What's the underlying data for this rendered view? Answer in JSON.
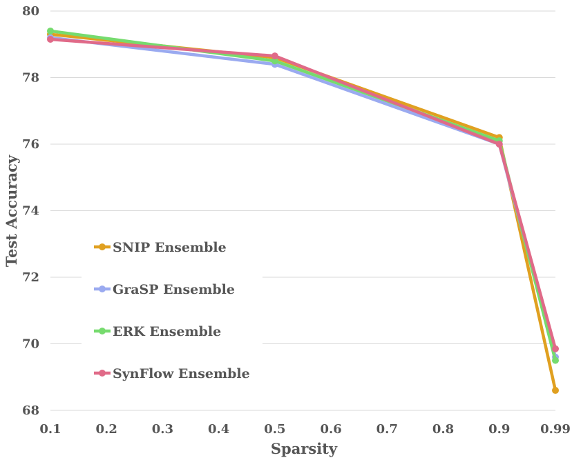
{
  "chart_data": {
    "type": "line",
    "title": "",
    "xlabel": "Sparsity",
    "ylabel": "Test Accuracy",
    "x_ticks": [
      "0.1",
      "0.2",
      "0.3",
      "0.4",
      "0.5",
      "0.6",
      "0.7",
      "0.8",
      "0.9",
      "0.99"
    ],
    "ylim": [
      68,
      80
    ],
    "y_ticks": [
      "68",
      "70",
      "72",
      "74",
      "76",
      "78",
      "80"
    ],
    "grid": true,
    "legend_position": "left",
    "x": [
      0.1,
      0.5,
      0.9,
      0.99
    ],
    "series": [
      {
        "name": "SNIP Ensemble",
        "color": "#E0A020",
        "values": [
          79.3,
          78.6,
          76.2,
          68.6
        ]
      },
      {
        "name": "GraSP Ensemble",
        "color": "#9AAAF0",
        "values": [
          79.2,
          78.4,
          76.0,
          69.6
        ]
      },
      {
        "name": "ERK Ensemble",
        "color": "#76DB6E",
        "values": [
          79.4,
          78.5,
          76.1,
          69.5
        ]
      },
      {
        "name": "SynFlow Ensemble",
        "color": "#E06A88",
        "values": [
          79.15,
          78.65,
          76.0,
          69.85
        ]
      }
    ]
  }
}
